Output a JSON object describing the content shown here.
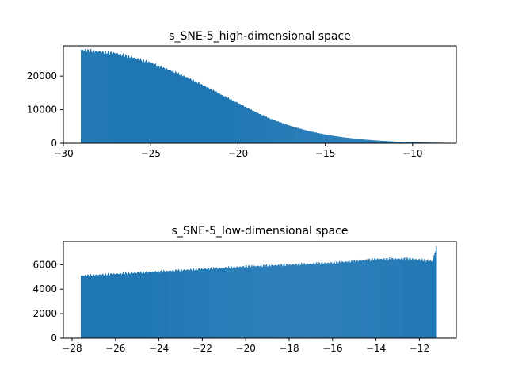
{
  "chart_data": [
    {
      "type": "bar",
      "title": "s_SNE-5_high-dimensional space",
      "xlabel": "",
      "ylabel": "",
      "xlim": [
        -30,
        -7.5
      ],
      "ylim": [
        0,
        29000
      ],
      "grid": false,
      "bar_color": "#1f77b4",
      "x_ticks": [
        -30,
        -25,
        -20,
        -15,
        -10
      ],
      "x_tick_labels": [
        "−30",
        "−25",
        "−20",
        "−15",
        "−10"
      ],
      "y_ticks": [
        0,
        10000,
        20000
      ],
      "y_tick_labels": [
        "0",
        "10000",
        "20000"
      ],
      "bin_range": [
        -29.0,
        -8.2
      ],
      "curve": [
        [
          -29.0,
          27800
        ],
        [
          -28.0,
          27300
        ],
        [
          -27.0,
          26800
        ],
        [
          -26.0,
          25500
        ],
        [
          -25.0,
          24000
        ],
        [
          -24.0,
          22000
        ],
        [
          -23.0,
          19800
        ],
        [
          -22.0,
          17300
        ],
        [
          -21.0,
          14600
        ],
        [
          -20.0,
          12000
        ],
        [
          -19.0,
          9300
        ],
        [
          -18.0,
          7000
        ],
        [
          -17.0,
          5200
        ],
        [
          -16.0,
          3700
        ],
        [
          -15.0,
          2600
        ],
        [
          -14.0,
          1800
        ],
        [
          -13.0,
          1200
        ],
        [
          -12.0,
          800
        ],
        [
          -11.0,
          500
        ],
        [
          -10.0,
          330
        ],
        [
          -9.0,
          200
        ],
        [
          -8.2,
          130
        ]
      ]
    },
    {
      "type": "bar",
      "title": "s_SNE-5_low-dimensional space",
      "xlabel": "",
      "ylabel": "",
      "xlim": [
        -28.4,
        -10.3
      ],
      "ylim": [
        0,
        7900
      ],
      "grid": false,
      "bar_color": "#1f77b4",
      "x_ticks": [
        -28,
        -26,
        -24,
        -22,
        -20,
        -18,
        -16,
        -14,
        -12
      ],
      "x_tick_labels": [
        "−28",
        "−26",
        "−24",
        "−22",
        "−20",
        "−18",
        "−16",
        "−14",
        "−12"
      ],
      "y_ticks": [
        0,
        2000,
        4000,
        6000
      ],
      "y_tick_labels": [
        "0",
        "2000",
        "4000",
        "6000"
      ],
      "bin_range": [
        -27.6,
        -11.2
      ],
      "curve": [
        [
          -27.6,
          5100
        ],
        [
          -26.0,
          5250
        ],
        [
          -24.0,
          5450
        ],
        [
          -22.0,
          5650
        ],
        [
          -20.0,
          5850
        ],
        [
          -18.0,
          6000
        ],
        [
          -16.0,
          6150
        ],
        [
          -14.0,
          6450
        ],
        [
          -12.5,
          6500
        ],
        [
          -11.4,
          6300
        ],
        [
          -11.2,
          7500
        ]
      ]
    }
  ]
}
